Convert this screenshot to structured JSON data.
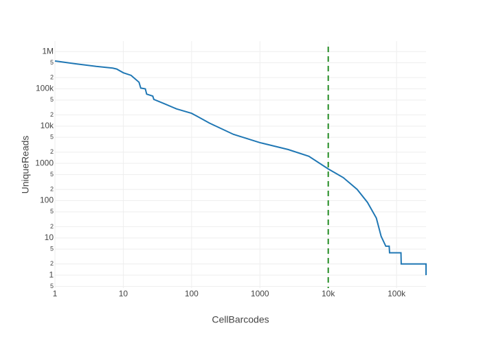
{
  "chart_data": {
    "type": "line",
    "x_label": "CellBarcodes",
    "y_label": "UniqueReads",
    "x": [
      1,
      2,
      4,
      7,
      8,
      10,
      13,
      17,
      18,
      21,
      22,
      27,
      28,
      41,
      60,
      100,
      123,
      183,
      410,
      1000,
      2600,
      5200,
      10000,
      16600,
      26500,
      37500,
      50600,
      59500,
      69600,
      78000,
      79000,
      116000,
      117000,
      270000,
      270000
    ],
    "series": [
      {
        "color": "#1f77b4",
        "values": [
          560000,
          470000,
          400000,
          360000,
          340000,
          270000,
          230000,
          150000,
          105000,
          100000,
          72000,
          64000,
          52000,
          39000,
          29000,
          22000,
          18000,
          12000,
          6000,
          3600,
          2350,
          1550,
          710,
          415,
          200,
          90,
          34,
          11,
          6,
          6,
          4,
          4,
          2,
          2,
          1
        ]
      }
    ],
    "xlog": true,
    "ylog": true,
    "grid": true,
    "xlim": [
      1,
      270000
    ],
    "ylim": [
      0.45,
      1900000
    ],
    "xticks": [
      1,
      10,
      100,
      1000,
      {
        "value": 10000,
        "label": "10k"
      },
      {
        "value": 100000,
        "label": "100k"
      }
    ],
    "yticks": [
      {
        "value": 0.5,
        "label": "5"
      },
      1,
      2,
      5,
      10,
      {
        "value": 20,
        "label": "2"
      },
      {
        "value": 50,
        "label": "5"
      },
      100,
      {
        "value": 200,
        "label": "2"
      },
      {
        "value": 500,
        "label": "5"
      },
      1000,
      {
        "value": 2000,
        "label": "2"
      },
      {
        "value": 5000,
        "label": "5"
      },
      {
        "value": 10000,
        "label": "10k"
      },
      {
        "value": 20000,
        "label": "2"
      },
      {
        "value": 50000,
        "label": "5"
      },
      {
        "value": 100000,
        "label": "100k"
      },
      {
        "value": 200000,
        "label": "2"
      },
      {
        "value": 500000,
        "label": "5"
      },
      {
        "value": 1000000,
        "label": "1M"
      }
    ],
    "vline": {
      "x": 10000,
      "color": "#228b22"
    }
  }
}
